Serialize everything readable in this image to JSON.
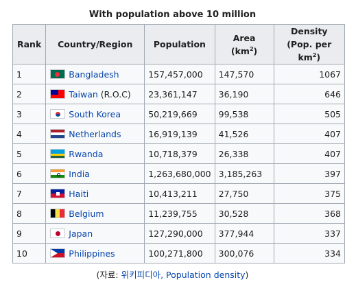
{
  "caption": "With population above 10 million",
  "headers": {
    "rank": "Rank",
    "country": "Country/Region",
    "population": "Population",
    "area_prefix": "Area (km",
    "area_sup": "2",
    "area_suffix": ")",
    "density_line1": "Density",
    "density_prefix": "(Pop. per km",
    "density_sup": "2",
    "density_suffix": ")"
  },
  "rows": [
    {
      "rank": "1",
      "country": "Bangladesh",
      "suffix": "",
      "flag": "bangladesh-flag-icon",
      "population": "157,457,000",
      "area": "147,570",
      "density": "1067"
    },
    {
      "rank": "2",
      "country": "Taiwan",
      "suffix": " (R.O.C)",
      "flag": "taiwan-flag-icon",
      "population": "23,361,147",
      "area": "36,190",
      "density": "646"
    },
    {
      "rank": "3",
      "country": "South Korea",
      "suffix": "",
      "flag": "south-korea-flag-icon",
      "population": "50,219,669",
      "area": "99,538",
      "density": "505"
    },
    {
      "rank": "4",
      "country": "Netherlands",
      "suffix": "",
      "flag": "netherlands-flag-icon",
      "population": "16,919,139",
      "area": "41,526",
      "density": "407"
    },
    {
      "rank": "5",
      "country": "Rwanda",
      "suffix": "",
      "flag": "rwanda-flag-icon",
      "population": "10,718,379",
      "area": "26,338",
      "density": "407"
    },
    {
      "rank": "6",
      "country": "India",
      "suffix": "",
      "flag": "india-flag-icon",
      "population": "1,263,680,000",
      "area": "3,185,263",
      "density": "397"
    },
    {
      "rank": "7",
      "country": "Haiti",
      "suffix": "",
      "flag": "haiti-flag-icon",
      "population": "10,413,211",
      "area": "27,750",
      "density": "375"
    },
    {
      "rank": "8",
      "country": "Belgium",
      "suffix": "",
      "flag": "belgium-flag-icon",
      "population": "11,239,755",
      "area": "30,528",
      "density": "368"
    },
    {
      "rank": "9",
      "country": "Japan",
      "suffix": "",
      "flag": "japan-flag-icon",
      "population": "127,290,000",
      "area": "377,944",
      "density": "337"
    },
    {
      "rank": "10",
      "country": "Philippines",
      "suffix": "",
      "flag": "philippines-flag-icon",
      "population": "100,271,800",
      "area": "300,076",
      "density": "334"
    }
  ],
  "source": {
    "prefix": "(자료: ",
    "link": "위키피디아, Population density",
    "suffix": ")"
  }
}
